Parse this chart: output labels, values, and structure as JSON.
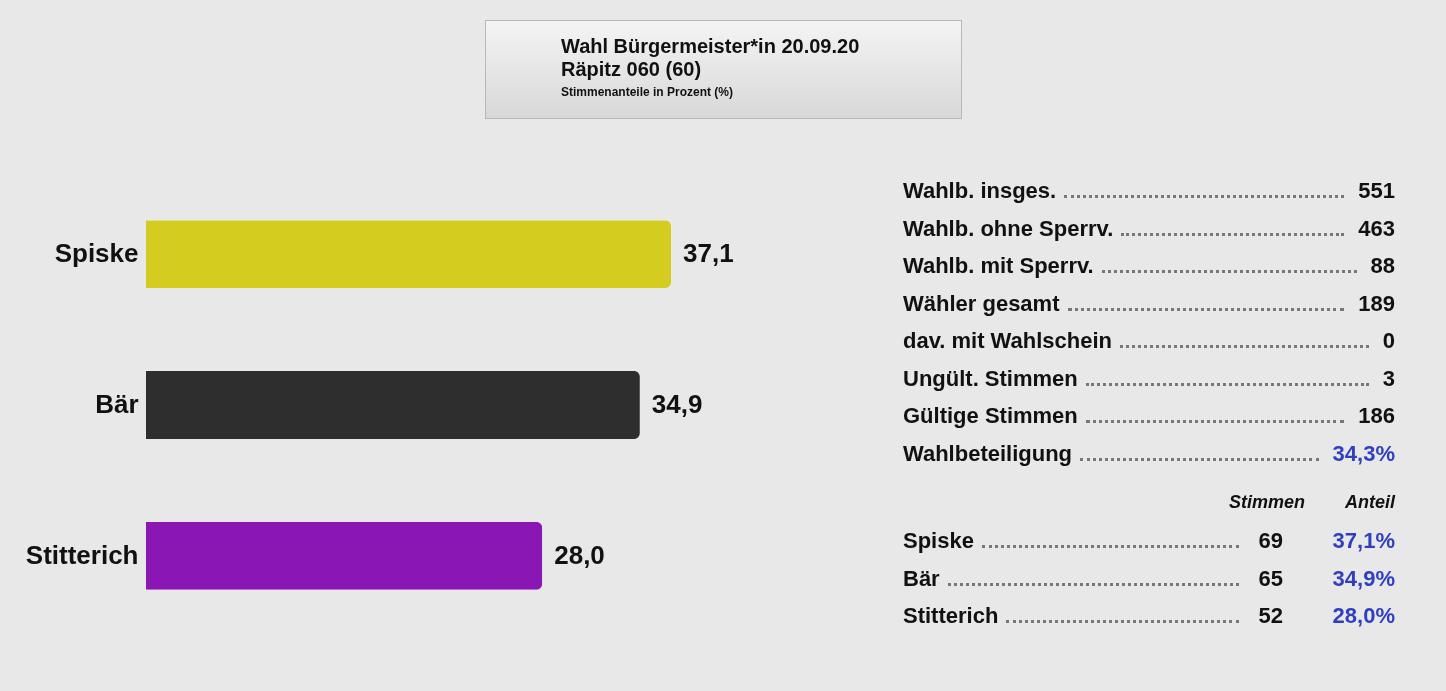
{
  "chart_data": [
    {
      "type": "bar",
      "orientation": "horizontal",
      "title": "Wahl Bürgermeister*in 20.09.20",
      "subtitle": "Räpitz 060 (60)",
      "annotations": [
        "Stimmenanteile in Prozent (%)"
      ],
      "categories": [
        "Spiske",
        "Bär",
        "Stitterich"
      ],
      "values": [
        37.1,
        34.9,
        28.0
      ],
      "colors": [
        "#d4cc1e",
        "#2e2e2e",
        "#8a16b4"
      ],
      "value_labels": [
        "37,1",
        "34,9",
        "28,0"
      ]
    },
    {
      "type": "other",
      "annotations": [
        "Wahlb. insges.",
        "551",
        "Wahlb. ohne Sperrv.",
        "463",
        "Wahlb. mit Sperrv.",
        "88",
        "Wähler gesamt",
        "189",
        "dav. mit Wahlschein",
        "0",
        "Ungült. Stimmen",
        "3",
        "Gültige Stimmen",
        "186",
        "Wahlbeteiligung",
        "34,3%",
        "Stimmen",
        "Anteil",
        "Spiske",
        "69",
        "37,1%",
        "Bär",
        "65",
        "34,9%",
        "Stitterich",
        "52",
        "28,0%"
      ]
    }
  ]
}
